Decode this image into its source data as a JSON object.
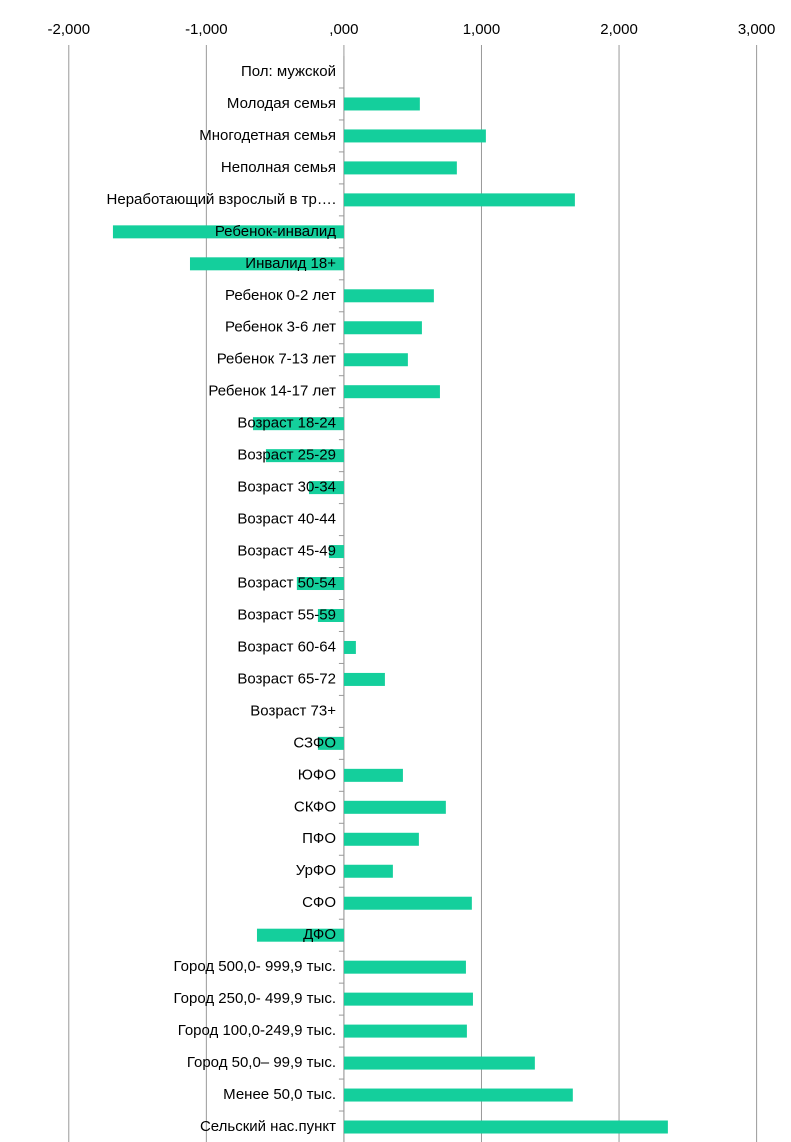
{
  "chart_data": {
    "type": "barh",
    "categories": [
      "Пол: мужской",
      "Молодая семья",
      "Многодетная семья",
      "Неполная семья",
      "Неработающий взрослый в тр….",
      "Ребенок-инвалид",
      "Инвалид 18+",
      "Ребенок 0-2 лет",
      "Ребенок 3-6 лет",
      "Ребенок 7-13 лет",
      "Ребенок 14-17 лет",
      "Возраст 18-24",
      "Возраст 25-29",
      "Возраст 30-34",
      "Возраст 40-44",
      "Возраст 45-49",
      "Возраст 50-54",
      "Возраст 55-59",
      "Возраст 60-64",
      "Возраст 65-72",
      "Возраст 73+",
      "СЗФО",
      "ЮФО",
      "СКФО",
      "ПФО",
      "УрФО",
      "СФО",
      "ДФО",
      "Город 500,0- 999,9 тыс.",
      "Город 250,0- 499,9 тыс.",
      "Город 100,0-249,9 тыс.",
      "Город 50,0– 99,9 тыс.",
      "Менее 50,0 тыс.",
      "Сельский нас.пункт"
    ],
    "values": [
      0,
      552,
      1032,
      821,
      1679,
      -1679,
      -1119,
      654,
      567,
      465,
      698,
      -661,
      -567,
      -254,
      0,
      -109,
      -342,
      -189,
      87,
      298,
      0,
      -189,
      429,
      741,
      545,
      356,
      930,
      -632,
      887,
      938,
      894,
      1388,
      1664,
      2355
    ],
    "color": "#14cf9c",
    "xlim": [
      -2500,
      3250
    ],
    "xticks": [
      {
        "value": -2000,
        "label": "-2,000"
      },
      {
        "value": -1000,
        "label": "-1,000"
      },
      {
        "value": 0,
        "label": ",000"
      },
      {
        "value": 1000,
        "label": "1,000"
      },
      {
        "value": 2000,
        "label": "2,000"
      },
      {
        "value": 3000,
        "label": "3,000"
      }
    ],
    "grid": true
  }
}
